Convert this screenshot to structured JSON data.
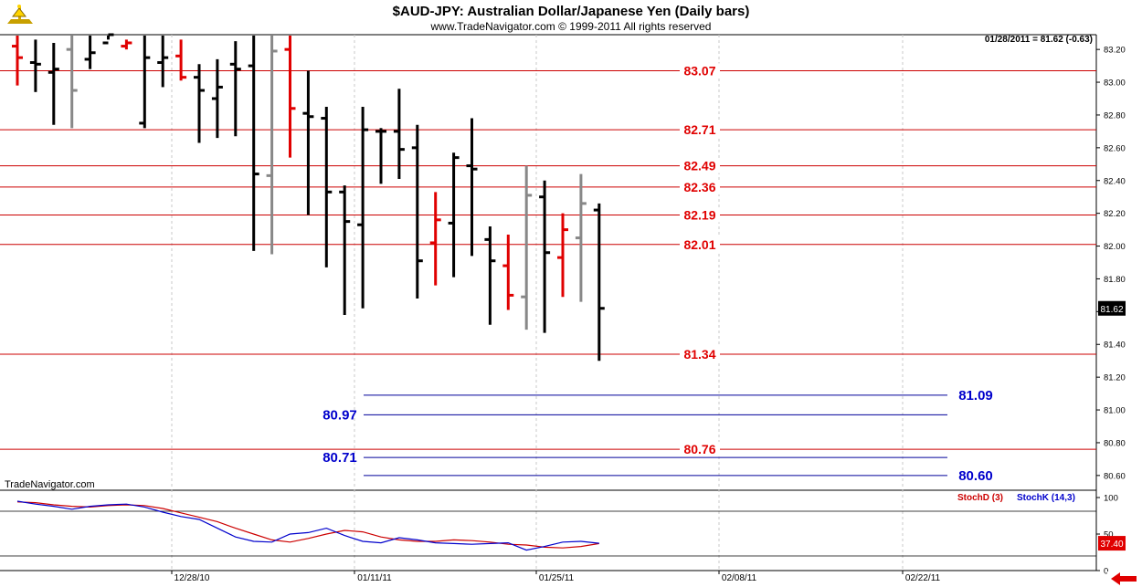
{
  "header": {
    "title": "$AUD-JPY:  Australian Dollar/Japanese Yen  (Daily bars)",
    "subtitle": "www.TradeNavigator.com © 1999-2011 All rights reserved",
    "last_value": "01/28/2011 = 81.62 (-0.63)",
    "watermark": "TradeNavigator.com"
  },
  "colors": {
    "up_bar": "#000000",
    "down_bar": "#e00000",
    "inside_bar": "#888888",
    "red_level": "#cc0000",
    "blue_level": "#00009a",
    "stoch_d": "#cc0000",
    "stoch_k": "#0000cc",
    "grid": "#c8c8c8"
  },
  "chart_data": [
    {
      "type": "ohlc",
      "ylim": [
        80.51,
        83.29
      ],
      "y_ticks": [
        "83.20",
        "83.00",
        "82.80",
        "82.60",
        "82.40",
        "82.20",
        "82.00",
        "81.80",
        "81.60",
        "81.40",
        "81.20",
        "81.00",
        "80.80",
        "80.60"
      ],
      "x_ticks": [
        "12/28/10",
        "01/11/11",
        "01/25/11",
        "02/08/11",
        "02/22/11"
      ],
      "current_price_label": "81.62",
      "bars": [
        {
          "h": 83.32,
          "l": 82.98,
          "o": 83.22,
          "c": 83.15,
          "color": "red"
        },
        {
          "h": 83.26,
          "l": 82.94,
          "o": 83.12,
          "c": 83.11,
          "color": "black"
        },
        {
          "h": 83.24,
          "l": 82.74,
          "o": 83.06,
          "c": 83.08,
          "color": "black"
        },
        {
          "h": 83.29,
          "l": 82.72,
          "o": 83.2,
          "c": 82.95,
          "color": "gray"
        },
        {
          "h": 83.3,
          "l": 83.08,
          "o": 83.14,
          "c": 83.18,
          "color": "black"
        },
        {
          "h": 83.3,
          "l": 83.26,
          "o": 83.24,
          "c": 83.29,
          "color": "black"
        },
        {
          "h": 83.26,
          "l": 83.2,
          "o": 83.22,
          "c": 83.24,
          "color": "red"
        },
        {
          "h": 83.3,
          "l": 82.72,
          "o": 82.75,
          "c": 83.15,
          "color": "black"
        },
        {
          "h": 83.29,
          "l": 82.97,
          "o": 83.12,
          "c": 83.15,
          "color": "black"
        },
        {
          "h": 83.26,
          "l": 83.01,
          "o": 83.16,
          "c": 83.03,
          "color": "red"
        },
        {
          "h": 83.11,
          "l": 82.63,
          "o": 83.03,
          "c": 82.95,
          "color": "black"
        },
        {
          "h": 83.14,
          "l": 82.66,
          "o": 82.9,
          "c": 82.97,
          "color": "black"
        },
        {
          "h": 83.25,
          "l": 82.67,
          "o": 83.11,
          "c": 83.08,
          "color": "black"
        },
        {
          "h": 83.29,
          "l": 81.97,
          "o": 83.1,
          "c": 82.44,
          "color": "black"
        },
        {
          "h": 83.29,
          "l": 81.95,
          "o": 82.43,
          "c": 83.19,
          "color": "gray"
        },
        {
          "h": 83.29,
          "l": 82.54,
          "o": 83.2,
          "c": 82.84,
          "color": "red"
        },
        {
          "h": 83.07,
          "l": 82.19,
          "o": 82.81,
          "c": 82.79,
          "color": "black"
        },
        {
          "h": 82.85,
          "l": 81.87,
          "o": 82.78,
          "c": 82.33,
          "color": "black"
        },
        {
          "h": 82.37,
          "l": 81.58,
          "o": 82.33,
          "c": 82.15,
          "color": "black"
        },
        {
          "h": 82.85,
          "l": 81.62,
          "o": 82.13,
          "c": 82.71,
          "color": "black"
        },
        {
          "h": 82.72,
          "l": 82.38,
          "o": 82.7,
          "c": 82.7,
          "color": "black"
        },
        {
          "h": 82.96,
          "l": 82.41,
          "o": 82.7,
          "c": 82.59,
          "color": "black"
        },
        {
          "h": 82.74,
          "l": 81.68,
          "o": 82.6,
          "c": 81.91,
          "color": "black"
        },
        {
          "h": 82.33,
          "l": 81.76,
          "o": 82.02,
          "c": 82.16,
          "color": "red"
        },
        {
          "h": 82.57,
          "l": 81.81,
          "o": 82.14,
          "c": 82.54,
          "color": "black"
        },
        {
          "h": 82.78,
          "l": 81.94,
          "o": 82.49,
          "c": 82.47,
          "color": "black"
        },
        {
          "h": 82.12,
          "l": 81.52,
          "o": 82.04,
          "c": 81.91,
          "color": "black"
        },
        {
          "h": 82.07,
          "l": 81.61,
          "o": 81.88,
          "c": 81.7,
          "color": "red"
        },
        {
          "h": 82.49,
          "l": 81.49,
          "o": 81.69,
          "c": 82.31,
          "color": "gray"
        },
        {
          "h": 82.4,
          "l": 81.47,
          "o": 82.3,
          "c": 81.96,
          "color": "black"
        },
        {
          "h": 82.2,
          "l": 81.69,
          "o": 81.93,
          "c": 82.1,
          "color": "red"
        },
        {
          "h": 82.44,
          "l": 81.66,
          "o": 82.05,
          "c": 82.26,
          "color": "gray"
        },
        {
          "h": 82.26,
          "l": 81.3,
          "o": 82.22,
          "c": 81.62,
          "color": "black"
        }
      ],
      "levels": [
        {
          "value": 83.07,
          "label": "83.07",
          "color": "red",
          "span": "full",
          "label_side": "right"
        },
        {
          "value": 82.71,
          "label": "82.71",
          "color": "red",
          "span": "full",
          "label_side": "right"
        },
        {
          "value": 82.49,
          "label": "82.49",
          "color": "red",
          "span": "full",
          "label_side": "right"
        },
        {
          "value": 82.36,
          "label": "82.36",
          "color": "red",
          "span": "full",
          "label_side": "right"
        },
        {
          "value": 82.19,
          "label": "82.19",
          "color": "red",
          "span": "full",
          "label_side": "right"
        },
        {
          "value": 82.01,
          "label": "82.01",
          "color": "red",
          "span": "full",
          "label_side": "right"
        },
        {
          "value": 81.34,
          "label": "81.34",
          "color": "red",
          "span": "full",
          "label_side": "right"
        },
        {
          "value": 80.76,
          "label": "80.76",
          "color": "red",
          "span": "full",
          "label_side": "right"
        },
        {
          "value": 81.09,
          "label": "81.09",
          "color": "blue",
          "span": "future",
          "label_side": "right"
        },
        {
          "value": 80.97,
          "label": "80.97",
          "color": "blue",
          "span": "future",
          "label_side": "left"
        },
        {
          "value": 80.71,
          "label": "80.71",
          "color": "blue",
          "span": "future",
          "label_side": "left"
        },
        {
          "value": 80.6,
          "label": "80.60",
          "color": "blue",
          "span": "future",
          "label_side": "right"
        }
      ]
    },
    {
      "type": "line",
      "ylim": [
        0,
        100
      ],
      "y_ticks": [
        "100",
        "50",
        "0"
      ],
      "current_value_label": "37.40",
      "legend": [
        "StochD (3)",
        "StochK (14,3)"
      ],
      "series": [
        {
          "name": "StochD (3)",
          "color": "red",
          "values": [
            94,
            93,
            90,
            88,
            87,
            89,
            90,
            89,
            85,
            79,
            73,
            67,
            58,
            50,
            42,
            39,
            44,
            50,
            55,
            53,
            46,
            42,
            40,
            40,
            42,
            41,
            39,
            36,
            35,
            32,
            31,
            33,
            37
          ]
        },
        {
          "name": "StochK (14,3)",
          "color": "blue",
          "values": [
            95,
            91,
            88,
            84,
            88,
            90,
            91,
            87,
            80,
            74,
            70,
            58,
            46,
            40,
            39,
            50,
            52,
            58,
            48,
            40,
            38,
            45,
            42,
            38,
            37,
            36,
            37,
            38,
            28,
            33,
            39,
            40,
            37.4
          ]
        }
      ]
    }
  ]
}
